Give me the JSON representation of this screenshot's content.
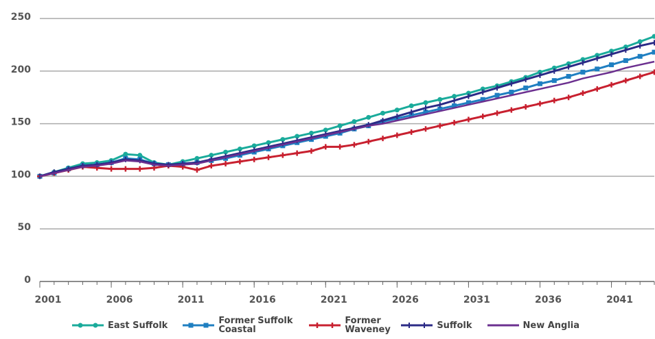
{
  "chart_data": {
    "type": "line",
    "x": [
      2001,
      2002,
      2003,
      2004,
      2005,
      2006,
      2007,
      2008,
      2009,
      2010,
      2011,
      2012,
      2013,
      2014,
      2015,
      2016,
      2017,
      2018,
      2019,
      2020,
      2021,
      2022,
      2023,
      2024,
      2025,
      2026,
      2027,
      2028,
      2029,
      2030,
      2031,
      2032,
      2033,
      2034,
      2035,
      2036,
      2037,
      2038,
      2039,
      2040,
      2041,
      2042,
      2043,
      2044
    ],
    "xlim": [
      2001,
      2044
    ],
    "xticks": [
      2001,
      2006,
      2011,
      2016,
      2021,
      2026,
      2031,
      2036,
      2041
    ],
    "ylim": [
      0,
      250
    ],
    "yticks": [
      0,
      50,
      100,
      150,
      200,
      250
    ],
    "grid": true,
    "series": [
      {
        "name": "East Suffolk",
        "color": "#1aab9b",
        "marker": "circle",
        "values": [
          100,
          104,
          108,
          112,
          113,
          115,
          121,
          120,
          113,
          111,
          114,
          117,
          120,
          123,
          126,
          129,
          132,
          135,
          138,
          141,
          144,
          148,
          152,
          156,
          160,
          163,
          167,
          170,
          173,
          176,
          179,
          183,
          186,
          190,
          194,
          199,
          203,
          207,
          211,
          215,
          219,
          223,
          228,
          233
        ]
      },
      {
        "name": "Former Suffolk Coastal",
        "color": "#1f7fc1",
        "marker": "square",
        "values": [
          100,
          103,
          107,
          110,
          111,
          113,
          117,
          116,
          112,
          111,
          112,
          113,
          115,
          117,
          120,
          123,
          126,
          129,
          132,
          135,
          138,
          141,
          145,
          148,
          152,
          155,
          158,
          161,
          164,
          167,
          170,
          173,
          177,
          180,
          184,
          188,
          191,
          195,
          199,
          202,
          206,
          210,
          214,
          218
        ]
      },
      {
        "name": "Former Waveney",
        "color": "#c8202f",
        "marker": "plus",
        "values": [
          100,
          103,
          106,
          109,
          108,
          107,
          107,
          107,
          108,
          110,
          109,
          106,
          110,
          112,
          114,
          116,
          118,
          120,
          122,
          124,
          128,
          128,
          130,
          133,
          136,
          139,
          142,
          145,
          148,
          151,
          154,
          157,
          160,
          163,
          166,
          169,
          172,
          175,
          179,
          183,
          187,
          191,
          195,
          199
        ]
      },
      {
        "name": "Suffolk",
        "color": "#2b2a86",
        "marker": "tick",
        "values": [
          100,
          104,
          107,
          110,
          111,
          113,
          116,
          115,
          112,
          111,
          112,
          113,
          116,
          119,
          122,
          125,
          128,
          131,
          134,
          137,
          140,
          143,
          146,
          149,
          153,
          157,
          161,
          165,
          168,
          172,
          176,
          180,
          184,
          188,
          192,
          196,
          200,
          204,
          208,
          212,
          216,
          220,
          224,
          227
        ]
      },
      {
        "name": "New Anglia",
        "color": "#6b2f8f",
        "marker": "none",
        "values": [
          100,
          103,
          106,
          109,
          110,
          112,
          115,
          114,
          111,
          110,
          111,
          112,
          115,
          118,
          121,
          124,
          127,
          130,
          133,
          136,
          139,
          142,
          145,
          148,
          150,
          153,
          156,
          159,
          162,
          165,
          168,
          171,
          174,
          177,
          180,
          183,
          186,
          189,
          193,
          196,
          199,
          203,
          206,
          209
        ]
      }
    ]
  }
}
